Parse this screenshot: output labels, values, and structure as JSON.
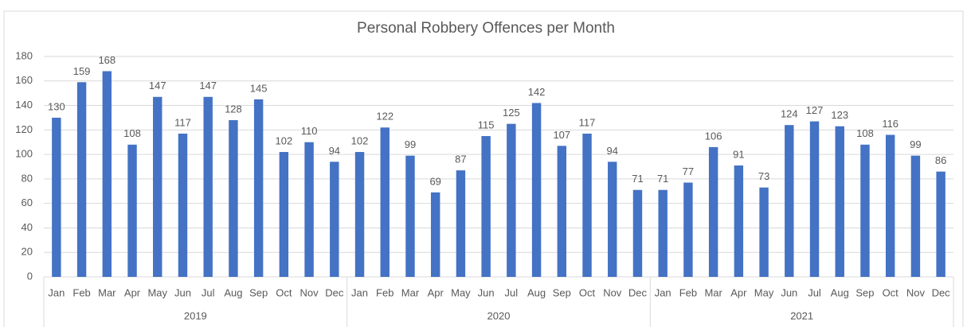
{
  "chart_data": {
    "type": "bar",
    "title": "Personal Robbery Offences per Month",
    "categories": [
      "Jan",
      "Feb",
      "Mar",
      "Apr",
      "May",
      "Jun",
      "Jul",
      "Aug",
      "Sep",
      "Oct",
      "Nov",
      "Dec",
      "Jan",
      "Feb",
      "Mar",
      "Apr",
      "May",
      "Jun",
      "Jul",
      "Aug",
      "Sep",
      "Oct",
      "Nov",
      "Dec",
      "Jan",
      "Feb",
      "Mar",
      "Apr",
      "May",
      "Jun",
      "Jul",
      "Aug",
      "Sep",
      "Oct",
      "Nov",
      "Dec"
    ],
    "groups": [
      "2019",
      "2020",
      "2021"
    ],
    "values": [
      130,
      159,
      168,
      108,
      147,
      117,
      147,
      128,
      145,
      102,
      110,
      94,
      102,
      122,
      99,
      69,
      87,
      115,
      125,
      142,
      107,
      117,
      94,
      71,
      71,
      77,
      106,
      91,
      73,
      124,
      127,
      123,
      108,
      116,
      99,
      86
    ],
    "color": "#4472c4",
    "ylim": [
      0,
      180
    ],
    "yticks": [
      0,
      20,
      40,
      60,
      80,
      100,
      120,
      140,
      160,
      180
    ],
    "grid": true
  }
}
